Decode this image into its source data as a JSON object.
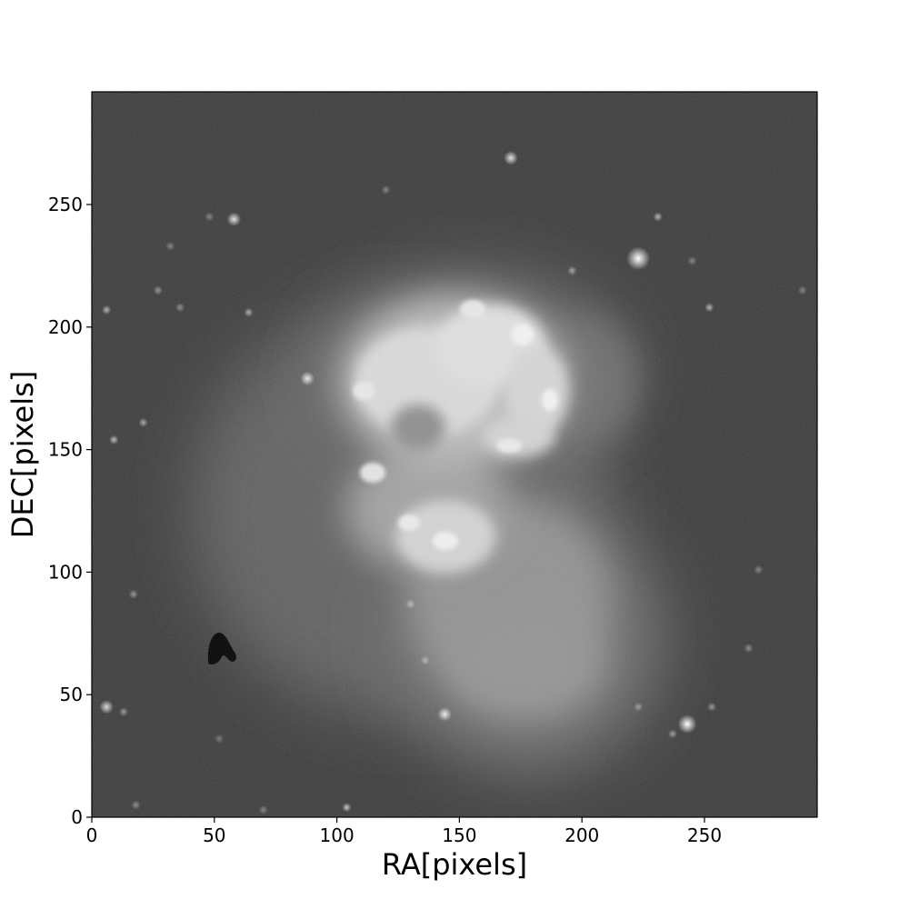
{
  "image": {
    "subject": "interacting-galaxies-grayscale",
    "colormap": "gray",
    "background_color": "#3a3a3a"
  },
  "chart_data": {
    "type": "heatmap",
    "title": "",
    "xlabel": "RA[pixels]",
    "ylabel": "DEC[pixels]",
    "xlim": [
      0,
      296
    ],
    "ylim": [
      0,
      296
    ],
    "x_ticks": [
      0,
      50,
      100,
      150,
      200,
      250
    ],
    "y_ticks": [
      0,
      50,
      100,
      150,
      200,
      250
    ],
    "x_tick_labels": [
      "0",
      "50",
      "100",
      "150",
      "200",
      "250"
    ],
    "y_tick_labels": [
      "0",
      "50",
      "100",
      "150",
      "200",
      "250"
    ],
    "grid": false,
    "legend": "none",
    "stars": [
      {
        "x": 171,
        "y": 269,
        "b": 0.85,
        "s": 3
      },
      {
        "x": 58,
        "y": 244,
        "b": 0.85,
        "s": 3
      },
      {
        "x": 223,
        "y": 228,
        "b": 1.0,
        "s": 5
      },
      {
        "x": 231,
        "y": 245,
        "b": 0.6,
        "s": 2
      },
      {
        "x": 243,
        "y": 38,
        "b": 1.0,
        "s": 4
      },
      {
        "x": 144,
        "y": 42,
        "b": 0.85,
        "s": 3
      },
      {
        "x": 88,
        "y": 179,
        "b": 0.85,
        "s": 3
      },
      {
        "x": 6,
        "y": 45,
        "b": 0.8,
        "s": 3
      },
      {
        "x": 104,
        "y": 4,
        "b": 0.7,
        "s": 2
      },
      {
        "x": 9,
        "y": 154,
        "b": 0.65,
        "s": 2
      },
      {
        "x": 6,
        "y": 207,
        "b": 0.6,
        "s": 2
      },
      {
        "x": 21,
        "y": 161,
        "b": 0.55,
        "s": 2
      },
      {
        "x": 252,
        "y": 208,
        "b": 0.6,
        "s": 2
      },
      {
        "x": 196,
        "y": 223,
        "b": 0.5,
        "s": 2
      },
      {
        "x": 64,
        "y": 206,
        "b": 0.55,
        "s": 2
      },
      {
        "x": 27,
        "y": 215,
        "b": 0.45,
        "s": 2
      },
      {
        "x": 36,
        "y": 208,
        "b": 0.4,
        "s": 2
      },
      {
        "x": 17,
        "y": 91,
        "b": 0.45,
        "s": 2
      },
      {
        "x": 13,
        "y": 43,
        "b": 0.45,
        "s": 2
      },
      {
        "x": 253,
        "y": 45,
        "b": 0.45,
        "s": 2
      },
      {
        "x": 237,
        "y": 34,
        "b": 0.45,
        "s": 2
      },
      {
        "x": 223,
        "y": 45,
        "b": 0.4,
        "s": 2
      },
      {
        "x": 268,
        "y": 69,
        "b": 0.4,
        "s": 2
      },
      {
        "x": 272,
        "y": 101,
        "b": 0.35,
        "s": 2
      },
      {
        "x": 18,
        "y": 5,
        "b": 0.4,
        "s": 2
      },
      {
        "x": 130,
        "y": 87,
        "b": 0.45,
        "s": 2
      },
      {
        "x": 136,
        "y": 64,
        "b": 0.4,
        "s": 2
      },
      {
        "x": 120,
        "y": 256,
        "b": 0.35,
        "s": 2
      },
      {
        "x": 48,
        "y": 245,
        "b": 0.35,
        "s": 2
      },
      {
        "x": 245,
        "y": 227,
        "b": 0.35,
        "s": 2
      },
      {
        "x": 32,
        "y": 233,
        "b": 0.35,
        "s": 2
      },
      {
        "x": 290,
        "y": 215,
        "b": 0.35,
        "s": 2
      },
      {
        "x": 70,
        "y": 3,
        "b": 0.35,
        "s": 2
      },
      {
        "x": 52,
        "y": 32,
        "b": 0.3,
        "s": 2
      }
    ]
  }
}
